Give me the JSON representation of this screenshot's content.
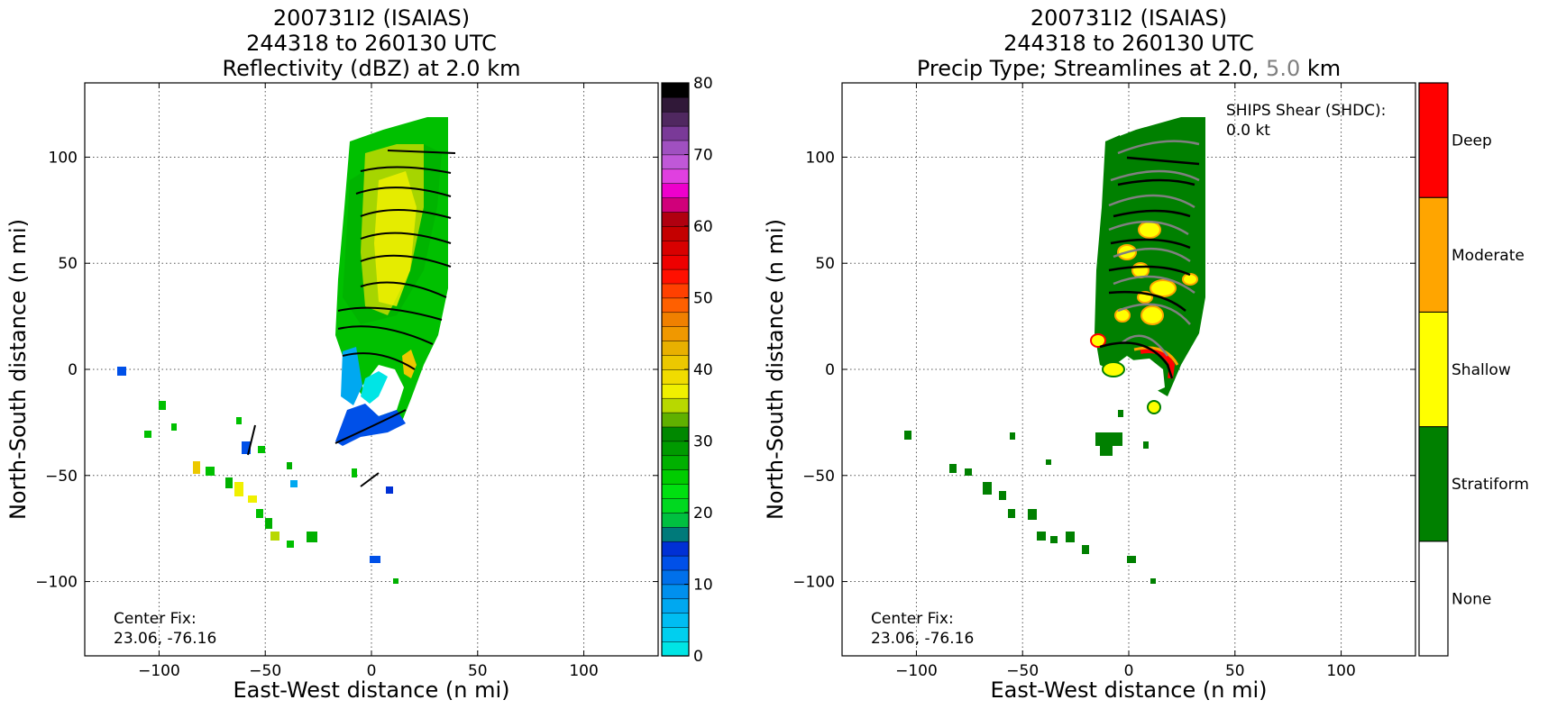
{
  "chart_data": [
    {
      "type": "heatmap",
      "title": [
        "200731I2 (ISAIAS)",
        "244318 to 260130 UTC",
        "Reflectivity (dBZ) at 2.0 km"
      ],
      "xlabel": "East-West distance (n mi)",
      "ylabel": "North-South distance (n mi)",
      "xlim": [
        -135,
        135
      ],
      "ylim": [
        -135,
        135
      ],
      "xticks": [
        -100,
        -50,
        0,
        50,
        100
      ],
      "yticks": [
        -100,
        -50,
        0,
        50,
        100
      ],
      "xtick_labels": [
        "−100",
        "−50",
        "0",
        "50",
        "100"
      ],
      "ytick_labels": [
        "−100",
        "−50",
        "0",
        "50",
        "100"
      ],
      "grid": true,
      "annotation": [
        "Center Fix:",
        "23.06, -76.16"
      ],
      "colorbar": {
        "min": 0,
        "max": 80,
        "step": 2.5,
        "ticks": [
          0,
          10,
          20,
          30,
          40,
          50,
          60,
          70,
          80
        ],
        "colors": [
          "#00e5e5",
          "#00cfef",
          "#00bdf2",
          "#00a8f0",
          "#0090ee",
          "#0070ea",
          "#0050e8",
          "#0030d5",
          "#007a7a",
          "#00c040",
          "#00d820",
          "#00e010",
          "#00cc00",
          "#00b000",
          "#009a00",
          "#008800",
          "#60b000",
          "#b8d800",
          "#f0f000",
          "#f0dc00",
          "#ecc800",
          "#e8b000",
          "#f09800",
          "#f08000",
          "#ff6000",
          "#ff4000",
          "#ff1000",
          "#ee0000",
          "#d80000",
          "#c40000",
          "#b00010",
          "#d0007a",
          "#ee00cc",
          "#e040e0",
          "#c058d8",
          "#a050c0",
          "#7a3a98",
          "#502860",
          "#301838",
          "#000000"
        ]
      },
      "echo_region_values_dbz": [
        22,
        25,
        28,
        32,
        36
      ]
    },
    {
      "type": "heatmap",
      "title": [
        "200731I2 (ISAIAS)",
        "244318 to 260130 UTC",
        "Precip Type; Streamlines at 2.0, ",
        "5.0",
        " km"
      ],
      "xlabel": "East-West distance (n mi)",
      "ylabel": "North-South distance (n mi)",
      "xlim": [
        -135,
        135
      ],
      "ylim": [
        -135,
        135
      ],
      "xticks": [
        -100,
        -50,
        0,
        50,
        100
      ],
      "yticks": [
        -100,
        -50,
        0,
        50,
        100
      ],
      "xtick_labels": [
        "−100",
        "−50",
        "0",
        "50",
        "100"
      ],
      "ytick_labels": [
        "−100",
        "−50",
        "0",
        "50",
        "100"
      ],
      "grid": true,
      "annotation": [
        "Center Fix:",
        "23.06, -76.16"
      ],
      "shear_annotation": [
        "SHIPS Shear (SHDC):",
        "0.0 kt"
      ],
      "streamline_colors": {
        "2.0 km": "#000000",
        "5.0 km": "#808080"
      },
      "colorbar": {
        "categories": [
          "None",
          "Stratiform",
          "Shallow",
          "Moderate",
          "Deep"
        ],
        "colors": [
          "#ffffff",
          "#008000",
          "#ffff00",
          "#ffa500",
          "#ff0000"
        ]
      }
    }
  ]
}
